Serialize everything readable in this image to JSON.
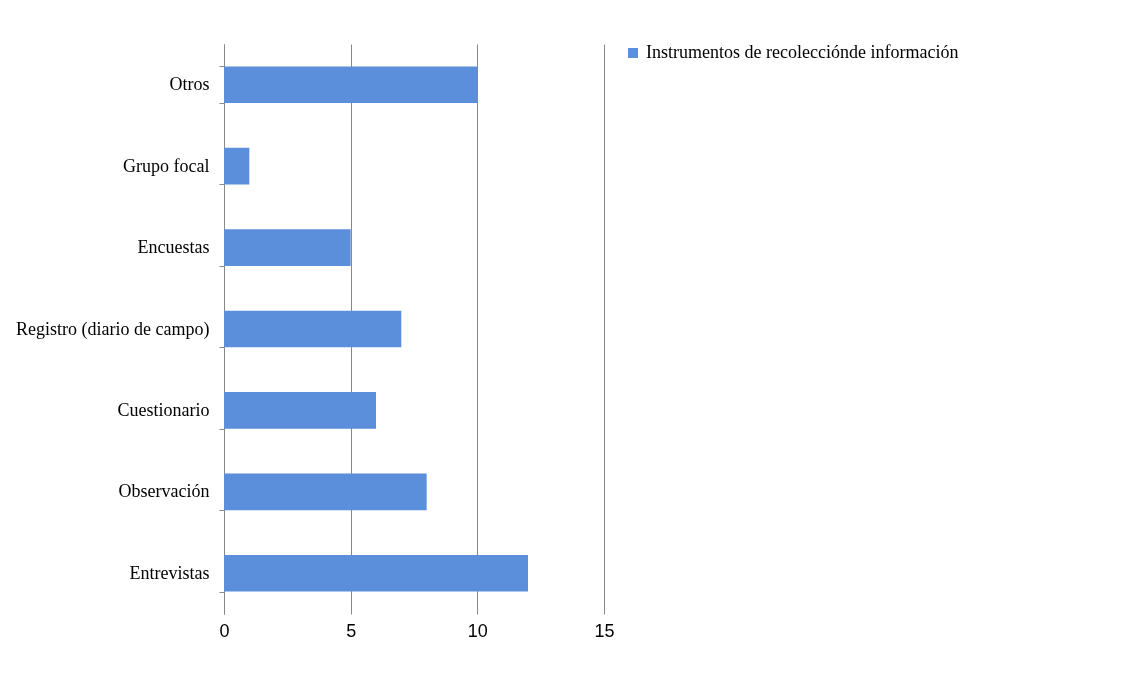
{
  "chart_data": {
    "type": "bar",
    "orientation": "horizontal",
    "categories": [
      "Otros",
      "Grupo focal",
      "Encuestas",
      "Registro (diario de campo)",
      "Cuestionario",
      "Observación",
      "Entrevistas"
    ],
    "series": [
      {
        "name": "Instrumentos de recolecciónde información",
        "color": "#5b8fdc",
        "values": [
          10,
          1,
          5,
          7,
          6,
          8,
          12
        ]
      }
    ],
    "xlim": [
      0,
      15
    ],
    "xticks": [
      0,
      5,
      10,
      15
    ],
    "grid": "x",
    "legend": "right"
  }
}
